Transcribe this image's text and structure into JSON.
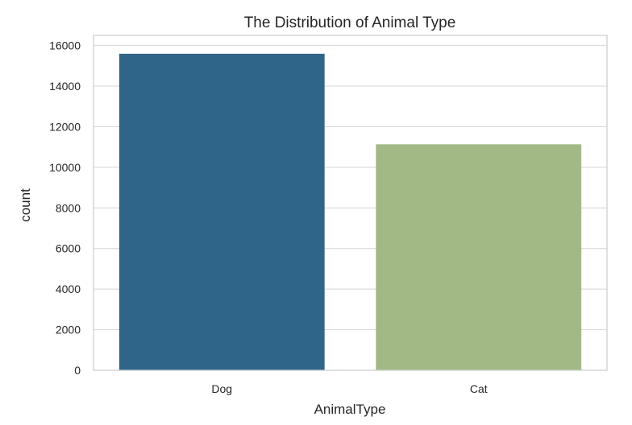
{
  "chart_data": {
    "type": "bar",
    "title": "The Distribution of Animal Type",
    "xlabel": "AnimalType",
    "ylabel": "count",
    "categories": [
      "Dog",
      "Cat"
    ],
    "values": [
      15595,
      11134
    ],
    "colors": [
      "#2f6589",
      "#a2b986"
    ],
    "ylim": [
      0,
      16500
    ],
    "yticks": [
      0,
      2000,
      4000,
      6000,
      8000,
      10000,
      12000,
      14000,
      16000
    ],
    "grid": true,
    "legend": "none"
  }
}
